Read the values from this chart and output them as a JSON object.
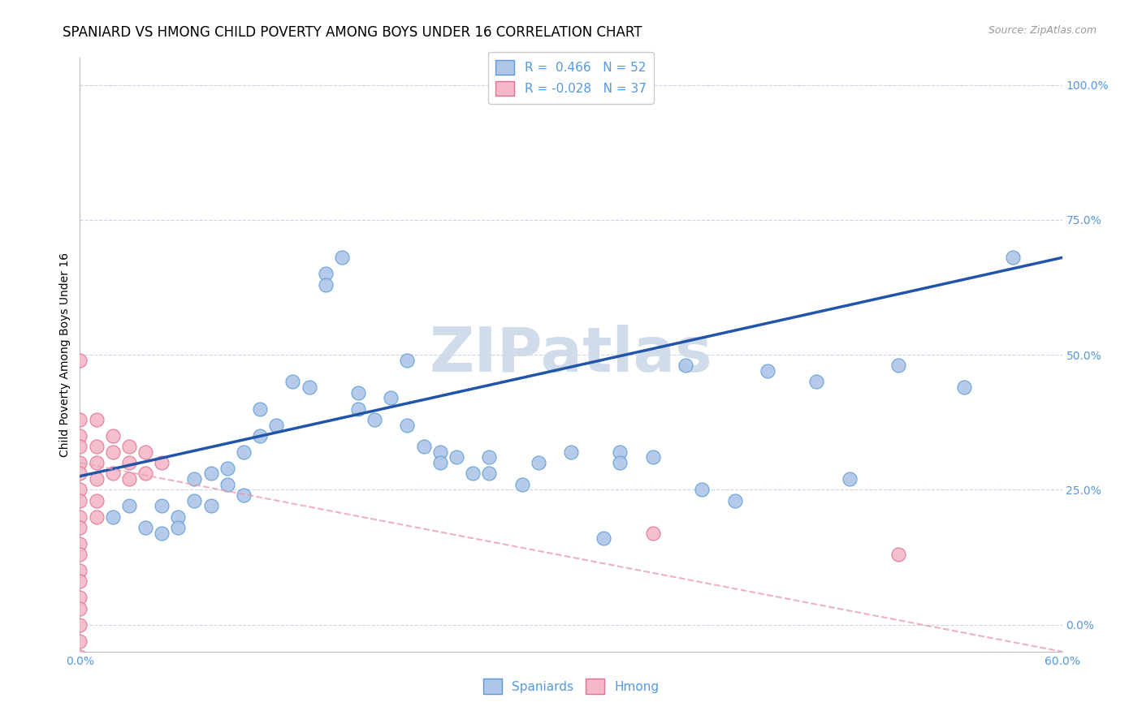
{
  "title": "SPANIARD VS HMONG CHILD POVERTY AMONG BOYS UNDER 16 CORRELATION CHART",
  "source": "Source: ZipAtlas.com",
  "ylabel": "Child Poverty Among Boys Under 16",
  "watermark": "ZIPatlas",
  "spaniard_R": 0.466,
  "spaniard_N": 52,
  "hmong_R": -0.028,
  "hmong_N": 37,
  "xlim": [
    0.0,
    0.6
  ],
  "ylim": [
    -0.05,
    1.05
  ],
  "yticks": [
    0.0,
    0.25,
    0.5,
    0.75,
    1.0
  ],
  "ytick_labels": [
    "0.0%",
    "25.0%",
    "50.0%",
    "75.0%",
    "100.0%"
  ],
  "xtick_positions": [
    0.0,
    0.1,
    0.2,
    0.3,
    0.4,
    0.5,
    0.6
  ],
  "xtick_labels": [
    "0.0%",
    "",
    "",
    "",
    "",
    "",
    "60.0%"
  ],
  "spaniard_color": "#aec6e8",
  "spaniard_edge": "#5b9bd5",
  "hmong_color": "#f4b8c8",
  "hmong_edge": "#e07090",
  "line_spaniard_color": "#2255aa",
  "line_hmong_color": "#e8a0b0",
  "background_color": "#ffffff",
  "grid_color": "#c8d4e8",
  "title_fontsize": 12,
  "axis_label_fontsize": 10,
  "tick_fontsize": 10,
  "legend_fontsize": 11,
  "watermark_color": "#d0dcea",
  "watermark_fontsize": 55,
  "spaniard_x": [
    0.02,
    0.03,
    0.04,
    0.05,
    0.05,
    0.06,
    0.06,
    0.07,
    0.07,
    0.08,
    0.08,
    0.09,
    0.09,
    0.1,
    0.1,
    0.11,
    0.11,
    0.12,
    0.13,
    0.14,
    0.15,
    0.15,
    0.16,
    0.17,
    0.17,
    0.18,
    0.19,
    0.2,
    0.2,
    0.21,
    0.22,
    0.22,
    0.23,
    0.24,
    0.25,
    0.25,
    0.27,
    0.28,
    0.3,
    0.32,
    0.33,
    0.33,
    0.35,
    0.37,
    0.38,
    0.4,
    0.42,
    0.45,
    0.47,
    0.5,
    0.54,
    0.57
  ],
  "spaniard_y": [
    0.2,
    0.22,
    0.18,
    0.22,
    0.17,
    0.2,
    0.18,
    0.23,
    0.27,
    0.28,
    0.22,
    0.29,
    0.26,
    0.32,
    0.24,
    0.4,
    0.35,
    0.37,
    0.45,
    0.44,
    0.65,
    0.63,
    0.68,
    0.43,
    0.4,
    0.38,
    0.42,
    0.49,
    0.37,
    0.33,
    0.32,
    0.3,
    0.31,
    0.28,
    0.31,
    0.28,
    0.26,
    0.3,
    0.32,
    0.16,
    0.32,
    0.3,
    0.31,
    0.48,
    0.25,
    0.23,
    0.47,
    0.45,
    0.27,
    0.48,
    0.44,
    0.68
  ],
  "hmong_x": [
    0.0,
    0.0,
    0.0,
    0.0,
    0.0,
    0.0,
    0.0,
    0.0,
    0.0,
    0.0,
    0.0,
    0.0,
    0.0,
    0.0,
    0.0,
    0.0,
    0.0,
    0.0,
    0.0,
    0.0,
    0.01,
    0.01,
    0.01,
    0.01,
    0.01,
    0.01,
    0.02,
    0.02,
    0.02,
    0.03,
    0.03,
    0.03,
    0.04,
    0.04,
    0.05,
    0.35,
    0.5
  ],
  "hmong_y": [
    0.49,
    0.38,
    0.35,
    0.33,
    0.3,
    0.28,
    0.25,
    0.23,
    0.2,
    0.18,
    0.15,
    0.13,
    0.1,
    0.08,
    0.05,
    0.03,
    0.0,
    -0.03,
    -0.06,
    -0.09,
    0.38,
    0.33,
    0.3,
    0.27,
    0.23,
    0.2,
    0.35,
    0.32,
    0.28,
    0.33,
    0.3,
    0.27,
    0.32,
    0.28,
    0.3,
    0.17,
    0.13
  ],
  "spaniard_line_x": [
    0.0,
    0.6
  ],
  "spaniard_line_y": [
    0.275,
    0.68
  ],
  "hmong_line_x": [
    0.0,
    0.6
  ],
  "hmong_line_y": [
    0.3,
    -0.05
  ]
}
